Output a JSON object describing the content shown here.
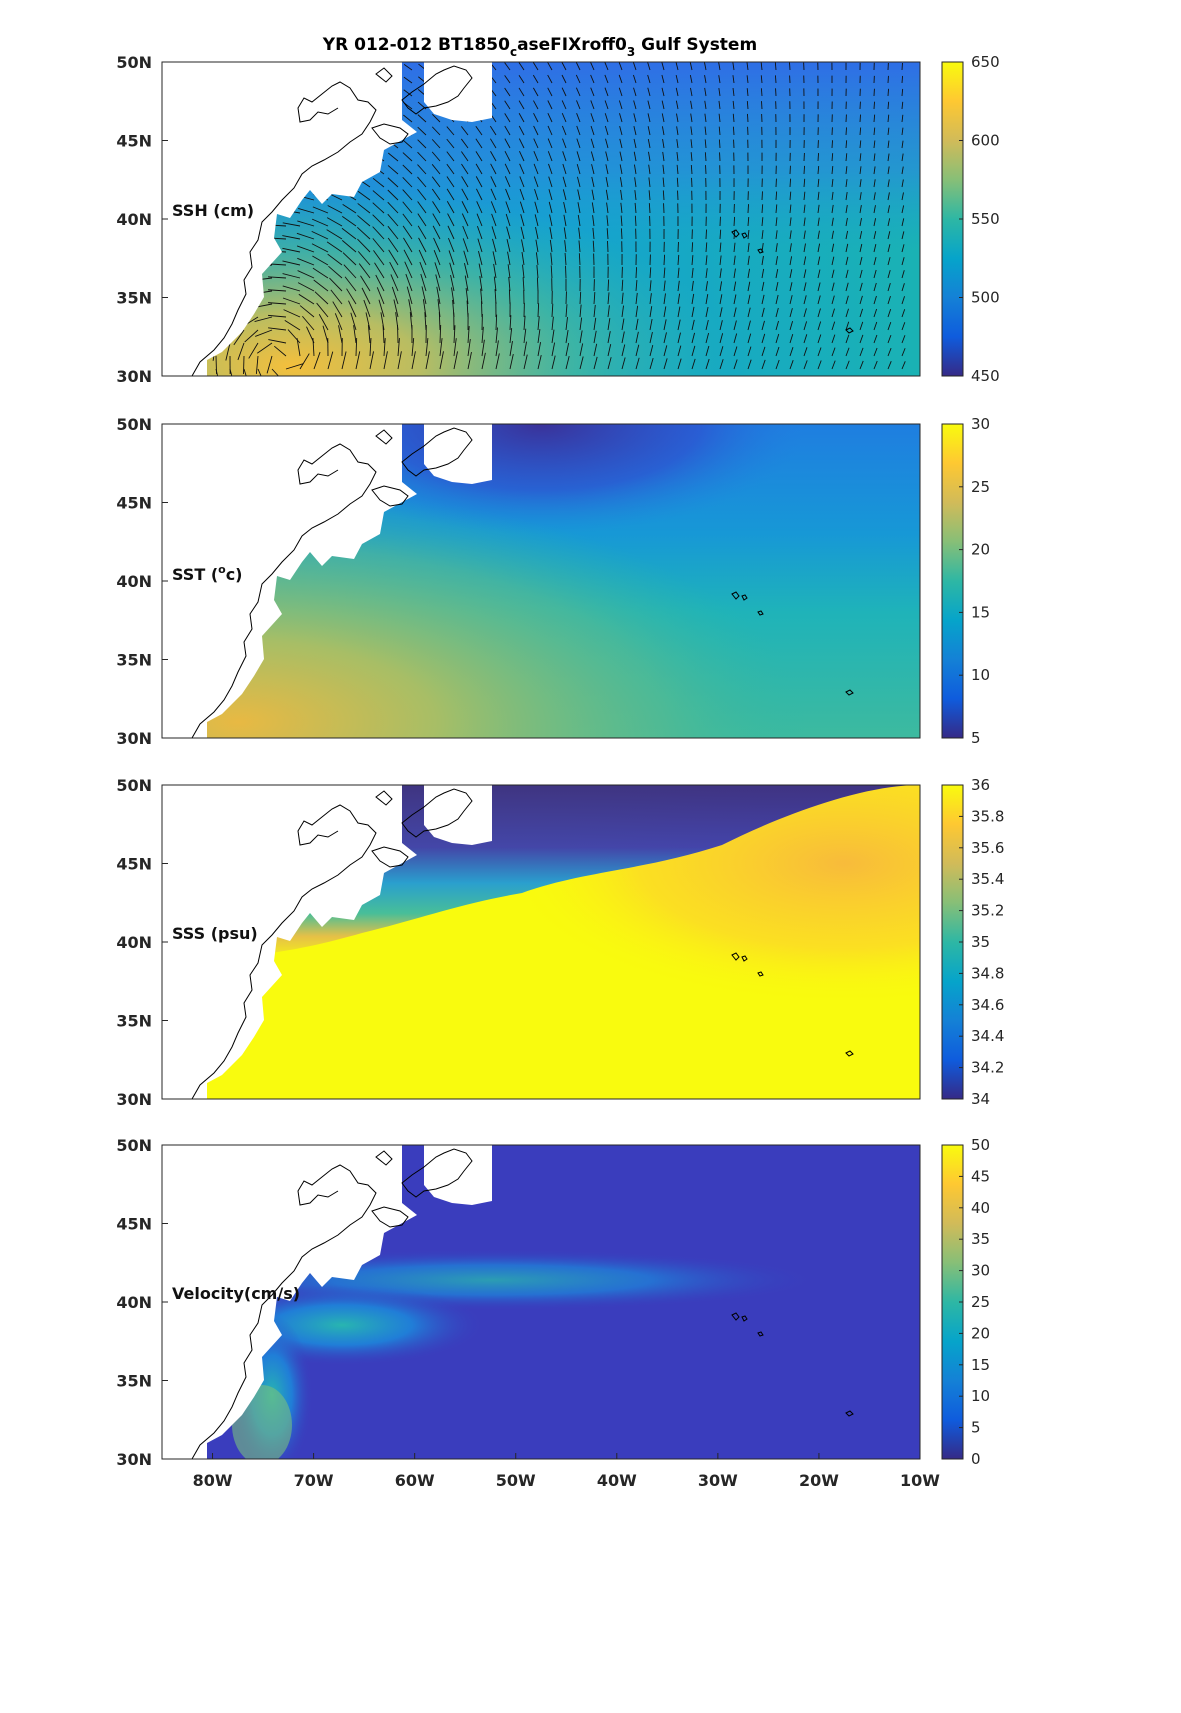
{
  "chart_data": [
    {
      "type": "heatmap",
      "title": "YR 012-012 BT1850",
      "title_sub": "c",
      "title_mid": "aseFIXroff0",
      "title_sub2": "3",
      "title_end": " Gulf System",
      "label": "SSH (cm)",
      "xlim": [
        -85,
        -10
      ],
      "ylim": [
        30,
        50
      ],
      "yticks": [
        "30N",
        "35N",
        "40N",
        "45N",
        "50N"
      ],
      "clim": [
        450,
        650
      ],
      "cbar_ticks": [
        "450",
        "500",
        "550",
        "600",
        "650"
      ],
      "colormap": "parula",
      "vectors": true,
      "field_peak": {
        "lon": -73,
        "lat": 31,
        "value": 640
      }
    },
    {
      "type": "heatmap",
      "label": "SST (",
      "label_sup": "o",
      "label_end": "c)",
      "xlim": [
        -85,
        -10
      ],
      "ylim": [
        30,
        50
      ],
      "yticks": [
        "30N",
        "35N",
        "40N",
        "45N",
        "50N"
      ],
      "clim": [
        5,
        30
      ],
      "cbar_ticks": [
        "5",
        "10",
        "15",
        "20",
        "25",
        "30"
      ],
      "colormap": "parula"
    },
    {
      "type": "heatmap",
      "label": "SSS (psu)",
      "xlim": [
        -85,
        -10
      ],
      "ylim": [
        30,
        50
      ],
      "yticks": [
        "30N",
        "35N",
        "40N",
        "45N",
        "50N"
      ],
      "clim": [
        34,
        36
      ],
      "cbar_ticks": [
        "34",
        "34.2",
        "34.4",
        "34.6",
        "34.8",
        "35",
        "35.2",
        "35.4",
        "35.6",
        "35.8",
        "36"
      ],
      "colormap": "parula"
    },
    {
      "type": "heatmap",
      "label": "Velocity(cm/s)",
      "xlim": [
        -85,
        -10
      ],
      "ylim": [
        30,
        50
      ],
      "yticks": [
        "30N",
        "35N",
        "40N",
        "45N",
        "50N"
      ],
      "xticks": [
        "80W",
        "70W",
        "60W",
        "50W",
        "40W",
        "30W",
        "20W",
        "10W"
      ],
      "clim": [
        0,
        50
      ],
      "cbar_ticks": [
        "0",
        "5",
        "10",
        "15",
        "20",
        "25",
        "30",
        "35",
        "40",
        "45",
        "50"
      ],
      "colormap": "parula"
    }
  ]
}
